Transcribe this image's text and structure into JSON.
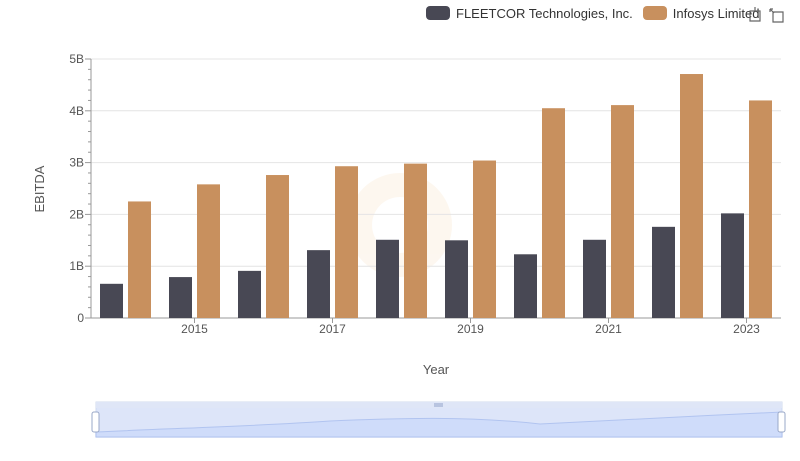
{
  "legend": {
    "items": [
      {
        "name": "FLEETCOR Technologies, Inc.",
        "color": "#484854"
      },
      {
        "name": "Infosys Limited",
        "color": "#c8905e"
      }
    ]
  },
  "toolbox": {
    "icons": [
      "restore-icon",
      "zoom-back-icon"
    ]
  },
  "chart_data": {
    "type": "bar",
    "x_label": "Year",
    "y_label": "EBITDA",
    "categories": [
      "2014",
      "2015",
      "2016",
      "2017",
      "2018",
      "2019",
      "2020",
      "2021",
      "2022",
      "2023"
    ],
    "x_tick_labels": [
      "2015",
      "2017",
      "2019",
      "2021",
      "2023"
    ],
    "y_ticks": [
      "0",
      "1B",
      "2B",
      "3B",
      "4B",
      "5B"
    ],
    "ylim": [
      0,
      5000000000
    ],
    "grid": true,
    "legend_position": "top-right",
    "series": [
      {
        "name": "FLEETCOR Technologies, Inc.",
        "color": "#484854",
        "values": [
          660000000,
          790000000,
          910000000,
          1310000000,
          1510000000,
          1500000000,
          1230000000,
          1510000000,
          1760000000,
          2020000000
        ]
      },
      {
        "name": "Infosys Limited",
        "color": "#c8905e",
        "values": [
          2250000000,
          2580000000,
          2760000000,
          2930000000,
          2980000000,
          3040000000,
          4050000000,
          4110000000,
          4710000000,
          4200000000
        ]
      }
    ]
  }
}
